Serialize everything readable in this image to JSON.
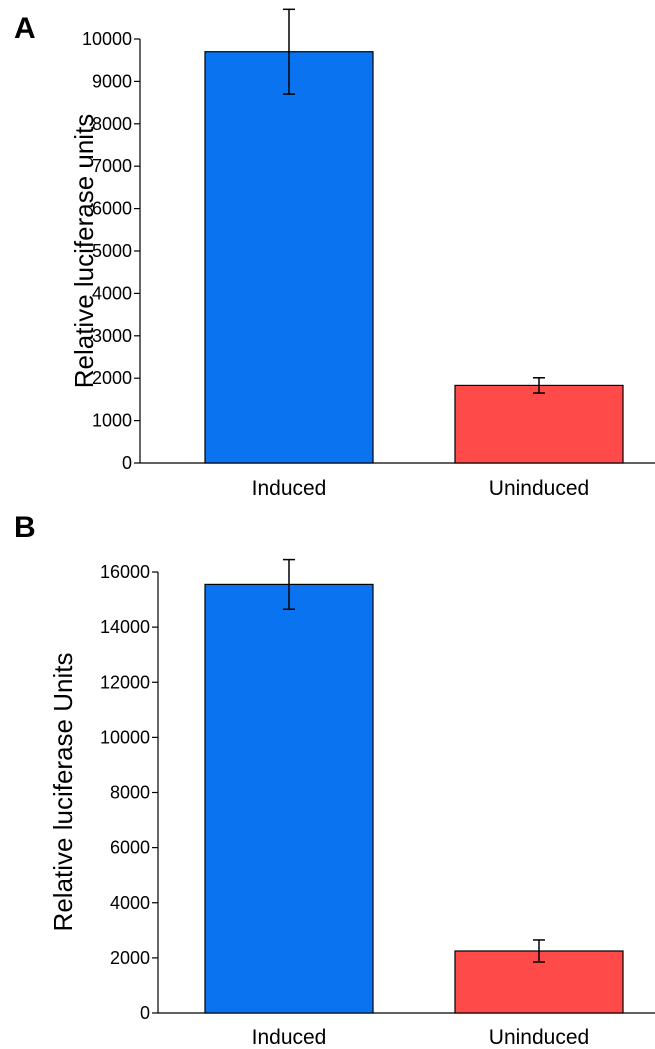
{
  "chart_data": [
    {
      "type": "bar",
      "panel": "A",
      "categories": [
        "Induced",
        "Uninduced"
      ],
      "values": [
        9700,
        1830
      ],
      "error": [
        1000,
        180
      ],
      "ylabel": "Relative luciferase units",
      "ylim": [
        0,
        10000
      ],
      "yticks": [
        0,
        1000,
        2000,
        3000,
        4000,
        5000,
        6000,
        7000,
        8000,
        9000,
        10000
      ],
      "colors": [
        "#0a74f0",
        "#ff4a4a"
      ],
      "grid": false
    },
    {
      "type": "bar",
      "panel": "B",
      "categories": [
        "Induced",
        "Uninduced"
      ],
      "values": [
        15550,
        2250
      ],
      "error": [
        900,
        400
      ],
      "ylabel": "Relative luciferase Units",
      "ylim": [
        0,
        16000
      ],
      "yticks": [
        0,
        2000,
        4000,
        6000,
        8000,
        10000,
        12000,
        14000,
        16000
      ],
      "colors": [
        "#0a74f0",
        "#ff4a4a"
      ],
      "grid": false
    }
  ]
}
